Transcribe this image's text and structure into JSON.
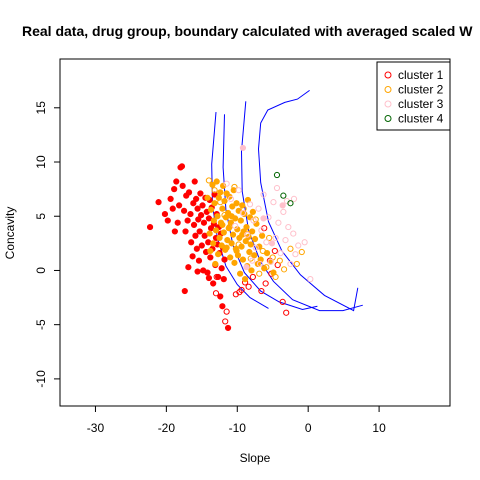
{
  "chart_data": {
    "type": "scatter",
    "title": "Real data, drug group, boundary calculated with averaged scaled W",
    "xlabel": "Slope",
    "ylabel": "Concavity",
    "xlim": [
      -35,
      20
    ],
    "ylim": [
      -12.5,
      19.5
    ],
    "xticks": [
      "-30",
      "-20",
      "-10",
      "0",
      "10"
    ],
    "xtick_values": [
      -30,
      -20,
      -10,
      0,
      10
    ],
    "yticks": [
      "-10",
      "-5",
      "0",
      "5",
      "10",
      "15"
    ],
    "ytick_values": [
      -10,
      -5,
      0,
      5,
      10,
      15
    ],
    "legend_position": "top-right",
    "series": [
      {
        "name": "cluster 1",
        "color": "#ff0000",
        "filled_points": [
          [
            -22.3,
            4.0
          ],
          [
            -21.1,
            6.3
          ],
          [
            -20.2,
            5.2
          ],
          [
            -19.8,
            4.6
          ],
          [
            -19.4,
            6.6
          ],
          [
            -19.1,
            5.7
          ],
          [
            -18.9,
            7.5
          ],
          [
            -18.6,
            8.2
          ],
          [
            -18.4,
            4.4
          ],
          [
            -18.2,
            6.0
          ],
          [
            -18.0,
            9.5
          ],
          [
            -17.8,
            9.6
          ],
          [
            -17.7,
            7.8
          ],
          [
            -17.5,
            5.5
          ],
          [
            -17.3,
            3.6
          ],
          [
            -17.2,
            6.9
          ],
          [
            -17.0,
            4.6
          ],
          [
            -16.8,
            7.2
          ],
          [
            -16.6,
            5.2
          ],
          [
            -16.5,
            2.6
          ],
          [
            -16.3,
            1.3
          ],
          [
            -16.2,
            6.2
          ],
          [
            -16.1,
            4.2
          ],
          [
            -16.0,
            8.2
          ],
          [
            -15.9,
            3.2
          ],
          [
            -15.8,
            6.6
          ],
          [
            -15.7,
            2.0
          ],
          [
            -15.6,
            5.7
          ],
          [
            -15.5,
            4.7
          ],
          [
            -15.4,
            0.9
          ],
          [
            -15.3,
            3.6
          ],
          [
            -15.2,
            7.1
          ],
          [
            -15.1,
            5.1
          ],
          [
            -15.0,
            2.3
          ],
          [
            -14.9,
            6.0
          ],
          [
            -14.8,
            0.0
          ],
          [
            -14.7,
            4.4
          ],
          [
            -14.6,
            3.2
          ],
          [
            -14.5,
            6.7
          ],
          [
            -14.4,
            1.7
          ],
          [
            -14.3,
            5.4
          ],
          [
            -14.2,
            -0.2
          ],
          [
            -14.1,
            2.6
          ],
          [
            -14.0,
            4.8
          ],
          [
            -13.9,
            6.5
          ],
          [
            -13.8,
            1.2
          ],
          [
            -13.7,
            3.9
          ],
          [
            -13.6,
            5.8
          ],
          [
            -13.5,
            2.0
          ],
          [
            -13.4,
            -1.2
          ],
          [
            -13.3,
            4.3
          ],
          [
            -13.2,
            7.0
          ],
          [
            -13.1,
            0.5
          ],
          [
            -13.0,
            3.0
          ],
          [
            -12.9,
            5.2
          ],
          [
            -12.8,
            2.4
          ],
          [
            -12.7,
            -0.6
          ],
          [
            -12.6,
            4.0
          ],
          [
            -12.5,
            1.6
          ],
          [
            -12.4,
            -2.4
          ],
          [
            -12.3,
            3.4
          ],
          [
            -12.2,
            0.2
          ],
          [
            -12.1,
            -3.3
          ],
          [
            -12.0,
            2.1
          ],
          [
            -11.9,
            -0.8
          ],
          [
            -11.8,
            1.0
          ],
          [
            -17.4,
            -1.9
          ],
          [
            -11.3,
            -5.3
          ],
          [
            -14.0,
            -0.7
          ],
          [
            -16.9,
            0.3
          ],
          [
            -15.6,
            -0.1
          ],
          [
            -18.8,
            3.6
          ]
        ],
        "open_points": [
          [
            -13.0,
            -2.1
          ],
          [
            -12.9,
            -0.6
          ],
          [
            -11.7,
            -4.7
          ],
          [
            -11.5,
            -3.8
          ],
          [
            -10.2,
            -2.2
          ],
          [
            -9.4,
            -1.8
          ],
          [
            -8.9,
            -1.1
          ],
          [
            -8.4,
            -1.5
          ],
          [
            -7.8,
            -0.6
          ],
          [
            -6.6,
            -1.9
          ],
          [
            -6.0,
            -1.2
          ],
          [
            -5.2,
            -0.3
          ],
          [
            -4.7,
            1.8
          ],
          [
            -4.3,
            0.5
          ],
          [
            -3.6,
            -2.9
          ],
          [
            -3.1,
            -3.9
          ],
          [
            -6.2,
            3.9
          ],
          [
            -5.4,
            0.9
          ],
          [
            -9.7,
            -2.0
          ]
        ]
      },
      {
        "name": "cluster 2",
        "color": "#ffa500",
        "filled_points": [
          [
            -14.2,
            6.7
          ],
          [
            -13.9,
            3.4
          ],
          [
            -13.7,
            5.6
          ],
          [
            -13.5,
            7.9
          ],
          [
            -13.4,
            2.5
          ],
          [
            -13.3,
            4.6
          ],
          [
            -13.2,
            6.2
          ],
          [
            -13.0,
            3.7
          ],
          [
            -12.9,
            8.2
          ],
          [
            -12.8,
            5.0
          ],
          [
            -12.7,
            1.5
          ],
          [
            -12.6,
            6.7
          ],
          [
            -12.5,
            3.0
          ],
          [
            -12.4,
            7.2
          ],
          [
            -12.3,
            4.4
          ],
          [
            -12.2,
            2.3
          ],
          [
            -12.1,
            5.7
          ],
          [
            -12.0,
            7.8
          ],
          [
            -11.9,
            3.5
          ],
          [
            -11.8,
            6.4
          ],
          [
            -11.7,
            1.9
          ],
          [
            -11.6,
            4.9
          ],
          [
            -11.5,
            7.1
          ],
          [
            -11.4,
            2.8
          ],
          [
            -11.3,
            5.3
          ],
          [
            -11.2,
            3.9
          ],
          [
            -11.1,
            6.8
          ],
          [
            -11.0,
            1.2
          ],
          [
            -10.9,
            4.4
          ],
          [
            -10.8,
            2.5
          ],
          [
            -10.7,
            5.9
          ],
          [
            -10.6,
            3.3
          ],
          [
            -10.5,
            7.4
          ],
          [
            -10.4,
            0.7
          ],
          [
            -10.3,
            4.8
          ],
          [
            -10.2,
            2.0
          ],
          [
            -10.1,
            6.2
          ],
          [
            -10.0,
            3.8
          ],
          [
            -9.9,
            1.4
          ],
          [
            -9.8,
            5.5
          ],
          [
            -9.7,
            3.0
          ],
          [
            -9.6,
            -0.3
          ],
          [
            -9.5,
            4.6
          ],
          [
            -9.4,
            2.2
          ],
          [
            -9.3,
            6.0
          ],
          [
            -9.2,
            1.0
          ],
          [
            -9.1,
            3.6
          ],
          [
            -9.0,
            5.2
          ],
          [
            -8.9,
            -0.8
          ],
          [
            -8.8,
            2.7
          ],
          [
            -8.7,
            4.0
          ],
          [
            -8.6,
            0.4
          ],
          [
            -8.5,
            6.5
          ],
          [
            -8.4,
            3.1
          ],
          [
            -8.3,
            1.7
          ],
          [
            -8.2,
            4.9
          ],
          [
            -8.1,
            2.4
          ],
          [
            -8.0,
            0.0
          ],
          [
            -7.9,
            3.6
          ],
          [
            -7.8,
            5.4
          ],
          [
            -7.6,
            1.4
          ],
          [
            -7.5,
            2.9
          ],
          [
            -7.3,
            4.3
          ],
          [
            -7.1,
            0.6
          ],
          [
            -6.9,
            2.2
          ],
          [
            -6.7,
            1.0
          ],
          [
            -6.5,
            3.2
          ],
          [
            -6.2,
            0.2
          ],
          [
            -5.8,
            1.6
          ],
          [
            -5.3,
            0.8
          ],
          [
            -4.9,
            -0.2
          ],
          [
            -12.1,
            4.2
          ],
          [
            -11.5,
            2.1
          ],
          [
            -10.8,
            5.0
          ],
          [
            -10.1,
            1.8
          ],
          [
            -9.3,
            3.3
          ],
          [
            -13.8,
            1.8
          ],
          [
            -13.1,
            0.6
          ]
        ],
        "open_points": [
          [
            -14.0,
            8.3
          ],
          [
            -13.2,
            7.4
          ],
          [
            -12.4,
            6.3
          ],
          [
            -11.8,
            5.1
          ],
          [
            -11.1,
            4.0
          ],
          [
            -10.4,
            7.7
          ],
          [
            -9.8,
            2.4
          ],
          [
            -9.1,
            5.7
          ],
          [
            -8.6,
            3.4
          ],
          [
            -8.1,
            1.1
          ],
          [
            -7.4,
            4.7
          ],
          [
            -6.9,
            -0.3
          ],
          [
            -6.4,
            1.8
          ],
          [
            -5.9,
            0.3
          ],
          [
            -5.5,
            3.0
          ],
          [
            -5.0,
            1.2
          ],
          [
            -4.6,
            -0.6
          ],
          [
            -4.0,
            0.9
          ],
          [
            -3.4,
            0.1
          ],
          [
            -2.5,
            2.0
          ],
          [
            -1.6,
            0.6
          ],
          [
            -0.9,
            1.7
          ]
        ]
      },
      {
        "name": "cluster 3",
        "color": "#ffc0cb",
        "filled_points": [
          [
            -9.2,
            11.3
          ],
          [
            -6.3,
            4.8
          ],
          [
            -5.1,
            2.5
          ],
          [
            -8.7,
            0.3
          ],
          [
            -3.6,
            6.0
          ]
        ],
        "open_points": [
          [
            -11.5,
            8.0
          ],
          [
            -10.9,
            6.6
          ],
          [
            -10.3,
            4.1
          ],
          [
            -9.8,
            7.4
          ],
          [
            -9.2,
            5.3
          ],
          [
            -8.6,
            3.3
          ],
          [
            -8.2,
            6.1
          ],
          [
            -7.7,
            4.6
          ],
          [
            -7.4,
            2.1
          ],
          [
            -7.0,
            5.7
          ],
          [
            -6.6,
            3.7
          ],
          [
            -6.3,
            7.0
          ],
          [
            -5.9,
            2.6
          ],
          [
            -5.6,
            4.9
          ],
          [
            -5.3,
            0.8
          ],
          [
            -4.9,
            6.3
          ],
          [
            -4.6,
            3.0
          ],
          [
            -4.2,
            4.4
          ],
          [
            -3.9,
            1.6
          ],
          [
            -3.5,
            5.4
          ],
          [
            -3.2,
            2.8
          ],
          [
            -2.8,
            4.0
          ],
          [
            -2.5,
            0.6
          ],
          [
            -2.1,
            3.4
          ],
          [
            -1.8,
            1.5
          ],
          [
            -1.4,
            2.3
          ],
          [
            -0.5,
            2.6
          ],
          [
            0.3,
            -0.8
          ],
          [
            -3.0,
            6.4
          ],
          [
            -4.4,
            7.6
          ],
          [
            -6.8,
            0.6
          ],
          [
            -7.9,
            0.9
          ],
          [
            -2.0,
            6.6
          ]
        ]
      },
      {
        "name": "cluster 4",
        "color": "#006400",
        "filled_points": [],
        "open_points": [
          [
            -4.4,
            8.8
          ],
          [
            -3.5,
            6.9
          ],
          [
            -2.5,
            6.2
          ]
        ]
      }
    ],
    "boundaries": [
      {
        "color": "#0000ff",
        "points": [
          [
            -13.0,
            14.6
          ],
          [
            -13.6,
            9.8
          ],
          [
            -13.5,
            6.0
          ],
          [
            -12.8,
            3.0
          ],
          [
            -11.6,
            0.4
          ],
          [
            -10.0,
            -1.3
          ],
          [
            -8.2,
            -2.5
          ],
          [
            -5.6,
            -3.5
          ]
        ]
      },
      {
        "color": "#0000ff",
        "points": [
          [
            -11.8,
            14.4
          ],
          [
            -12.0,
            9.5
          ],
          [
            -11.6,
            5.6
          ],
          [
            -10.6,
            2.3
          ],
          [
            -9.0,
            -0.2
          ],
          [
            -6.7,
            -1.9
          ],
          [
            -4.1,
            -2.9
          ],
          [
            -0.8,
            -3.6
          ],
          [
            1.3,
            -3.3
          ]
        ]
      },
      {
        "color": "#0000ff",
        "points": [
          [
            -8.8,
            15.6
          ],
          [
            -9.4,
            11.0
          ],
          [
            -9.3,
            7.3
          ],
          [
            -8.4,
            3.7
          ],
          [
            -6.8,
            0.9
          ],
          [
            -4.9,
            -1.0
          ],
          [
            -2.2,
            -2.7
          ],
          [
            1.6,
            -3.7
          ],
          [
            4.9,
            -3.7
          ],
          [
            7.7,
            -3.2
          ]
        ]
      },
      {
        "color": "#0000ff",
        "points": [
          [
            0.2,
            16.6
          ],
          [
            -1.5,
            15.8
          ],
          [
            -3.3,
            15.5
          ],
          [
            -5.7,
            14.8
          ],
          [
            -6.7,
            13.6
          ],
          [
            -7.0,
            11.2
          ],
          [
            -6.7,
            8.1
          ],
          [
            -5.6,
            4.5
          ],
          [
            -3.7,
            1.8
          ],
          [
            -1.1,
            -0.4
          ],
          [
            2.3,
            -2.3
          ],
          [
            6.4,
            -3.7
          ],
          [
            7.0,
            -1.6
          ]
        ]
      }
    ]
  }
}
